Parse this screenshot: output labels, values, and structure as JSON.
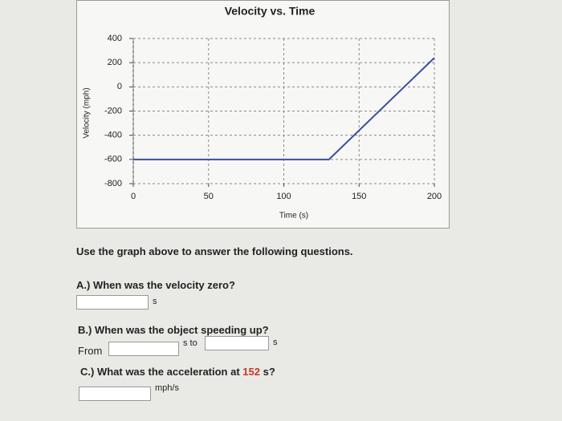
{
  "chart_data": {
    "type": "line",
    "title": "Velocity vs. Time",
    "x_label": "Time (s)",
    "y_label": "Velocity (mph)",
    "x": [
      0,
      130,
      200
    ],
    "values": [
      -600,
      -600,
      240
    ],
    "color": "#3a4fa0",
    "xlim": [
      0,
      200
    ],
    "xticks": [
      0,
      50,
      100,
      150,
      200
    ],
    "ylim": [
      -800,
      400
    ],
    "yticks": [
      -800,
      -600,
      -400,
      -200,
      0,
      200,
      400
    ],
    "grid": true
  },
  "questions": {
    "intro": "Use the graph above to answer the following questions.",
    "a": {
      "label": "A.) When was the velocity zero?",
      "unit": "s"
    },
    "b": {
      "label": "B.) When was the object speeding up?",
      "from": "From",
      "mid": "s to",
      "unit": "s"
    },
    "c": {
      "label_start": "C.) What was the acceleration at ",
      "highlight": "152",
      "label_end": " s?",
      "unit": "mph/s"
    }
  }
}
